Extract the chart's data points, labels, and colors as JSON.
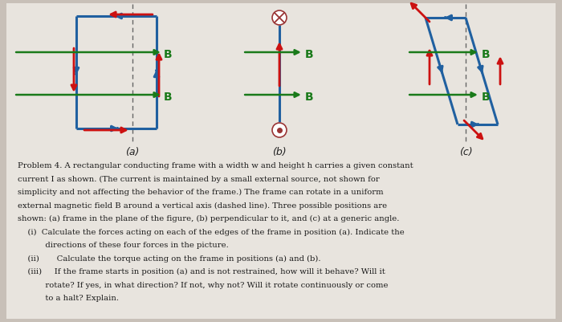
{
  "bg_color": "#c8c0b8",
  "card_color": "#e8e4de",
  "text_color": "#1a1a1a",
  "frame_color": "#2060a0",
  "arrow_color": "#cc1111",
  "b_arrow_color": "#1a7a1a",
  "b_label_color": "#1a7a1a",
  "dashed_color": "#666666",
  "body_text_lines": [
    "Problem 4. A rectangular conducting frame with a width w and height h carries a given constant",
    "current I as shown. (The current is maintained by a small external source, not shown for",
    "simplicity and not affecting the behavior of the frame.) The frame can rotate in a uniform",
    "external magnetic field B around a vertical axis (dashed line). Three possible positions are",
    "shown: (a) frame in the plane of the figure, (b) perpendicular to it, and (c) at a generic angle."
  ],
  "sub_lines": [
    {
      "pre": "    (i)  ",
      "text": "Calculate the forces acting on each of the edges of the frame in position (a). Indicate the"
    },
    {
      "pre": "          ",
      "text": "directions of these four forces in the picture."
    },
    {
      "pre": "    (ii) ",
      "text": "     Calculate the torque acting on the frame in positions (a) and (b)."
    },
    {
      "pre": "    (iii)",
      "text": "    If the frame starts in position (a) and is not restrained, how will it behave? Will it"
    },
    {
      "pre": "          ",
      "text": "rotate? If yes, in what direction? If not, why not? Will it rotate continuously or come"
    },
    {
      "pre": "          ",
      "text": "to a halt? Explain."
    }
  ]
}
